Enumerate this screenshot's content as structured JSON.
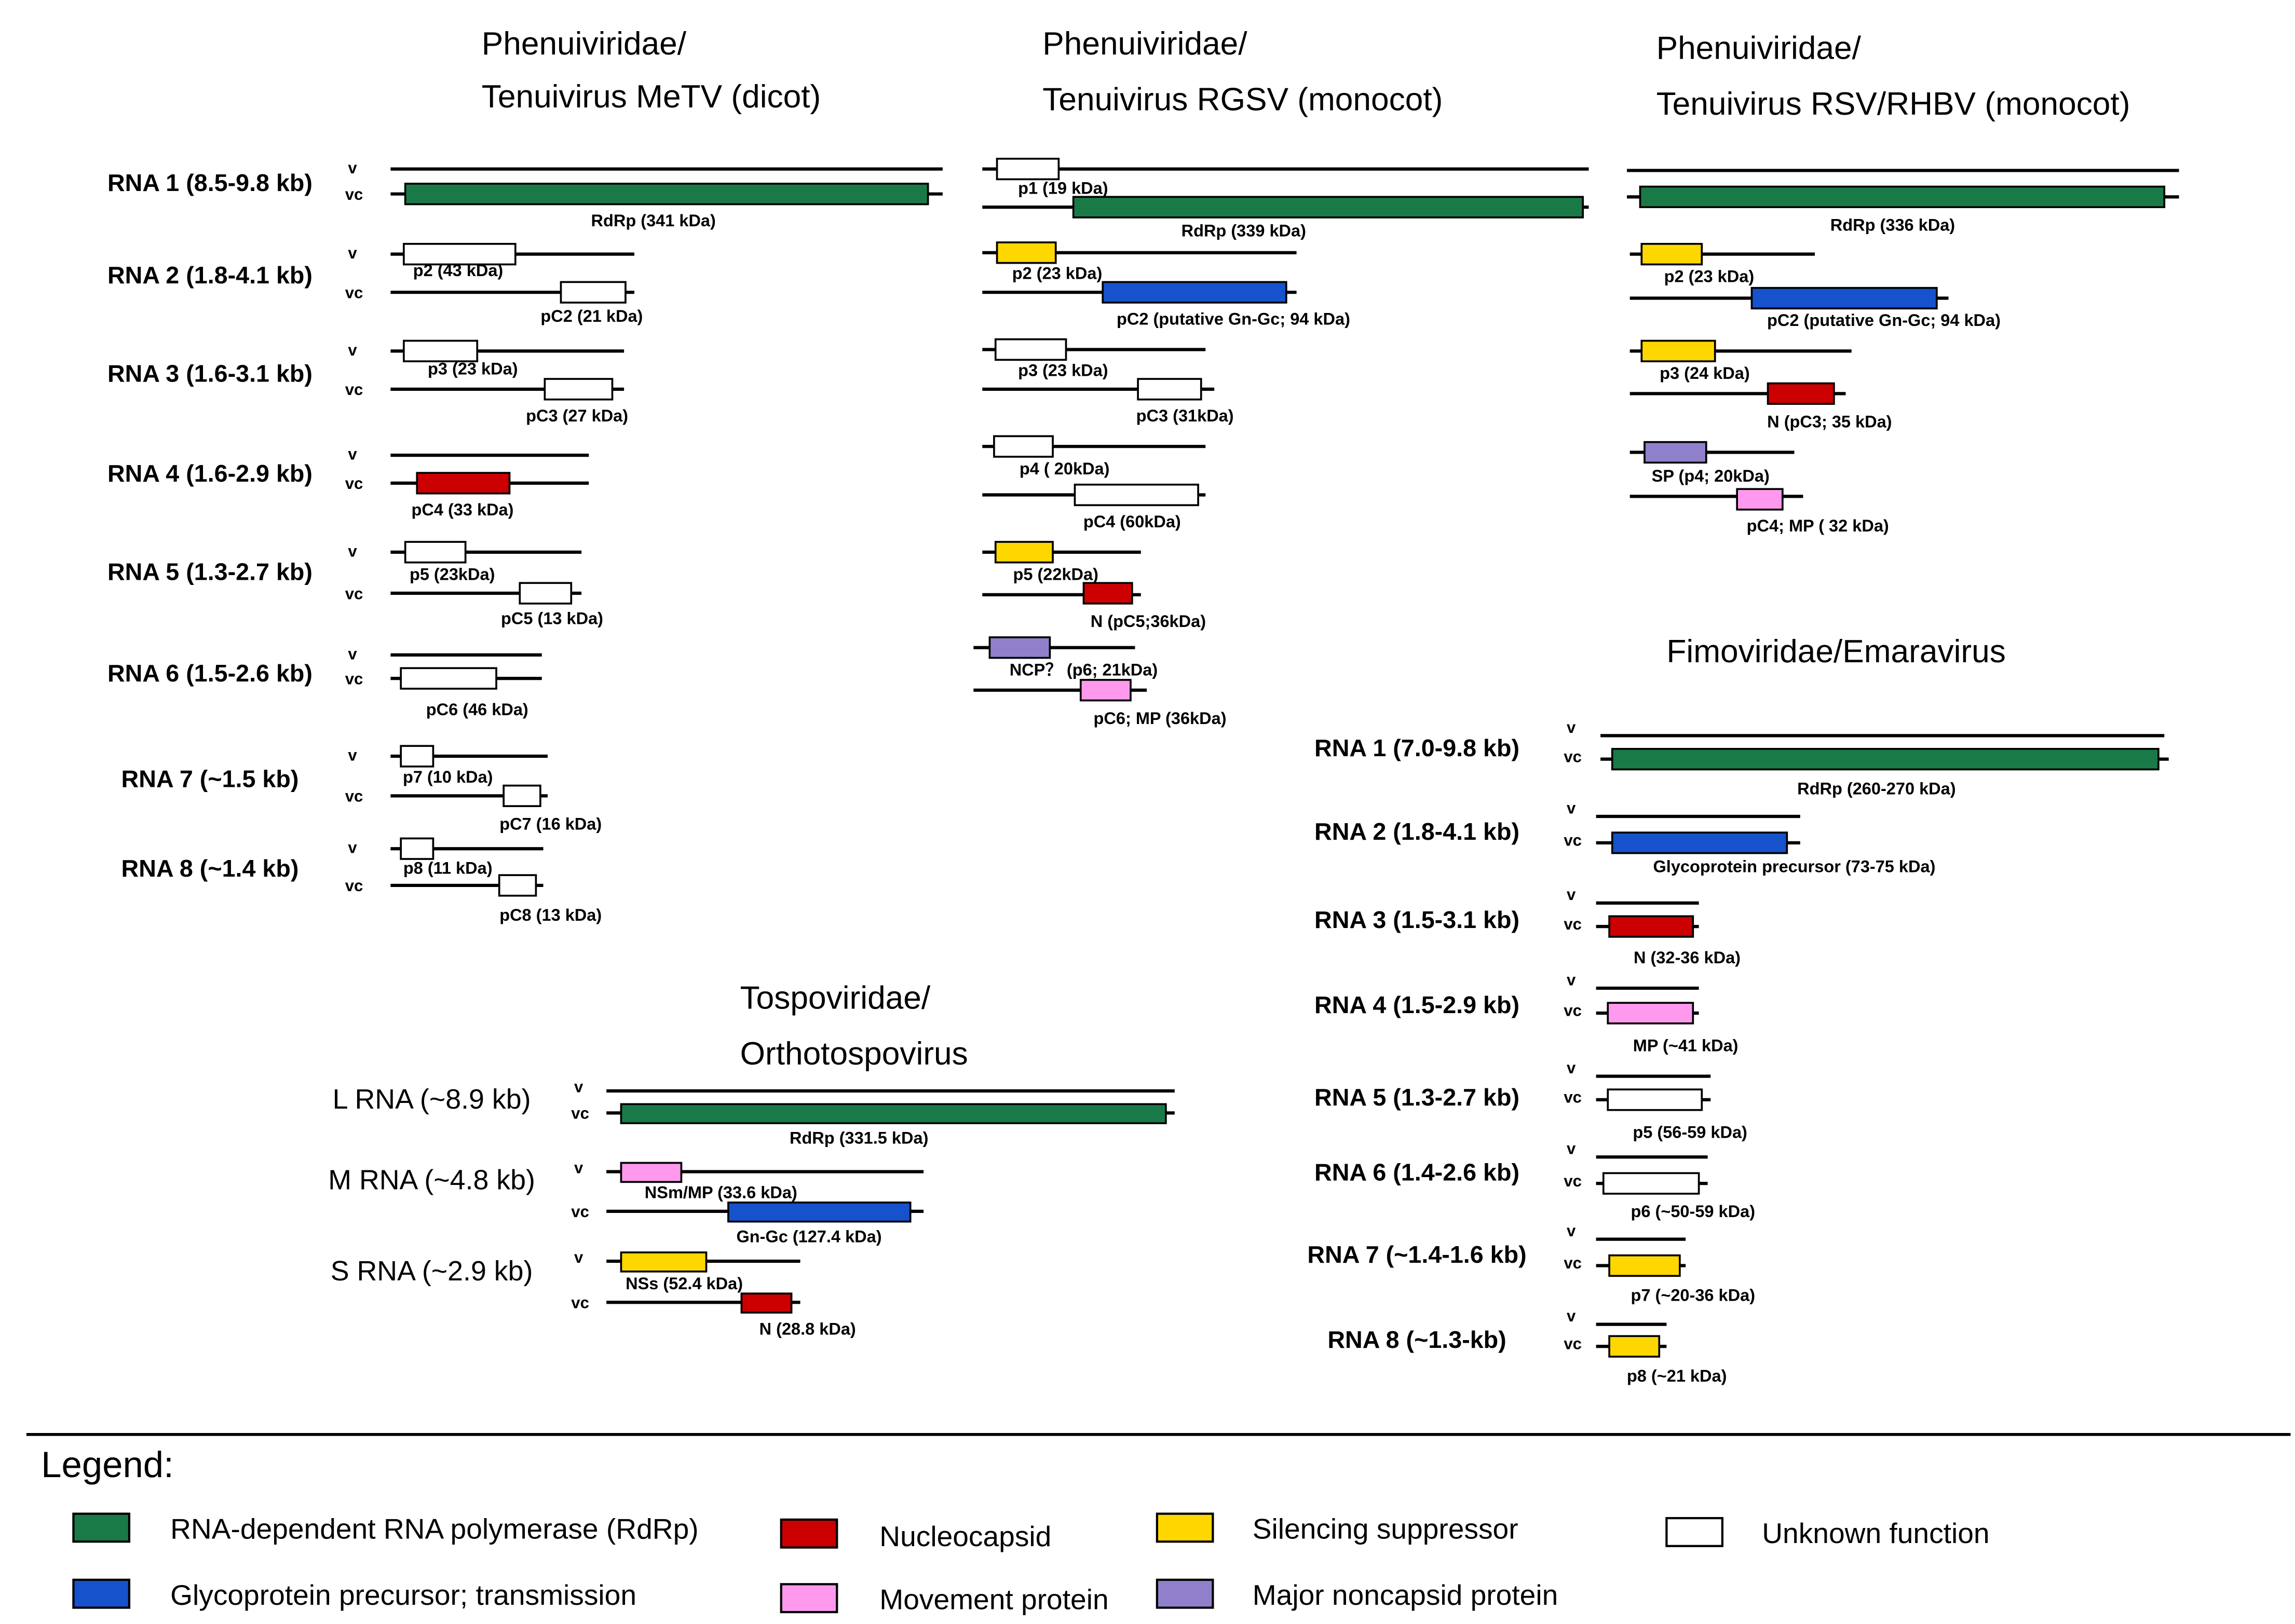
{
  "colors": {
    "rdrp": "#1a7a47",
    "glycoprotein": "#1552cc",
    "nucleocapsid": "#cc0000",
    "movement": "#ff99ee",
    "silencing": "#ffd700",
    "noncapsid": "#9080cc",
    "unknown": "#ffffff"
  },
  "strand_labels": {
    "v": "v",
    "vc": "vc"
  },
  "panels": {
    "metv": {
      "title_line1": "Phenuiviridae/",
      "title_line2": "Tenuivirus MeTV (dicot)",
      "rnas": [
        {
          "label": "RNA 1 (8.5-9.8 kb)",
          "orfs": [
            {
              "name": "RdRp (341 kDa)",
              "type": "rdrp"
            }
          ]
        },
        {
          "label": "RNA 2 (1.8-4.1 kb)",
          "orfs": [
            {
              "name": "p2 (43 kDa)",
              "type": "unknown"
            },
            {
              "name": "pC2 (21 kDa)",
              "type": "unknown"
            }
          ]
        },
        {
          "label": "RNA 3 (1.6-3.1 kb)",
          "orfs": [
            {
              "name": "p3 (23 kDa)",
              "type": "unknown"
            },
            {
              "name": "pC3 (27 kDa)",
              "type": "unknown"
            }
          ]
        },
        {
          "label": "RNA 4 (1.6-2.9 kb)",
          "orfs": [
            {
              "name": "pC4 (33 kDa)",
              "type": "nucleocapsid"
            }
          ]
        },
        {
          "label": "RNA 5 (1.3-2.7 kb)",
          "orfs": [
            {
              "name": "p5 (23kDa)",
              "type": "unknown"
            },
            {
              "name": "pC5 (13 kDa)",
              "type": "unknown"
            }
          ]
        },
        {
          "label": "RNA 6 (1.5-2.6 kb)",
          "orfs": [
            {
              "name": "pC6 (46 kDa)",
              "type": "unknown"
            }
          ]
        },
        {
          "label": "RNA 7 (~1.5 kb)",
          "orfs": [
            {
              "name": "p7 (10 kDa)",
              "type": "unknown"
            },
            {
              "name": "pC7 (16 kDa)",
              "type": "unknown"
            }
          ]
        },
        {
          "label": "RNA 8 (~1.4 kb)",
          "orfs": [
            {
              "name": "p8 (11 kDa)",
              "type": "unknown"
            },
            {
              "name": "pC8 (13 kDa)",
              "type": "unknown"
            }
          ]
        }
      ]
    },
    "rgsv": {
      "title_line1": "Phenuiviridae/",
      "title_line2": "Tenuivirus RGSV (monocot)",
      "orfs": [
        {
          "name": "p1 (19 kDa)",
          "type": "unknown"
        },
        {
          "name": "RdRp (339 kDa)",
          "type": "rdrp"
        },
        {
          "name": "p2 (23 kDa)",
          "type": "silencing"
        },
        {
          "name": "pC2 (putative Gn-Gc; 94 kDa)",
          "type": "glycoprotein"
        },
        {
          "name": "p3 (23 kDa)",
          "type": "unknown"
        },
        {
          "name": "pC3 (31kDa)",
          "type": "unknown"
        },
        {
          "name": "p4 ( 20kDa)",
          "type": "unknown"
        },
        {
          "name": "pC4 (60kDa)",
          "type": "unknown"
        },
        {
          "name": "p5 (22kDa)",
          "type": "silencing"
        },
        {
          "name": "N (pC5;36kDa)",
          "type": "nucleocapsid"
        },
        {
          "name": "NCP？ (p6; 21kDa)",
          "type": "noncapsid"
        },
        {
          "name": "pC6; MP (36kDa)",
          "type": "movement"
        }
      ]
    },
    "rsv": {
      "title_line1": "Phenuiviridae/",
      "title_line2": "Tenuivirus RSV/RHBV (monocot)",
      "orfs": [
        {
          "name": "RdRp (336 kDa)",
          "type": "rdrp"
        },
        {
          "name": "p2 (23 kDa)",
          "type": "silencing"
        },
        {
          "name": "pC2 (putative Gn-Gc; 94 kDa)",
          "type": "glycoprotein"
        },
        {
          "name": "p3 (24 kDa)",
          "type": "silencing"
        },
        {
          "name": "N (pC3; 35 kDa)",
          "type": "nucleocapsid"
        },
        {
          "name": "SP (p4; 20kDa)",
          "type": "noncapsid"
        },
        {
          "name": "pC4; MP ( 32 kDa)",
          "type": "movement"
        }
      ]
    },
    "tospo": {
      "title_line1": "Tospoviridae/",
      "title_line2": "Orthotospovirus",
      "rnas": [
        {
          "label": "L RNA (~8.9 kb)",
          "orfs": [
            {
              "name": "RdRp (331.5 kDa)",
              "type": "rdrp"
            }
          ]
        },
        {
          "label": "M RNA (~4.8 kb)",
          "orfs": [
            {
              "name": "NSm/MP (33.6 kDa)",
              "type": "movement"
            },
            {
              "name": "Gn-Gc (127.4 kDa)",
              "type": "glycoprotein"
            }
          ]
        },
        {
          "label": "S RNA (~2.9 kb)",
          "orfs": [
            {
              "name": "NSs (52.4 kDa)",
              "type": "silencing"
            },
            {
              "name": "N (28.8 kDa)",
              "type": "nucleocapsid"
            }
          ]
        }
      ]
    },
    "emara": {
      "title": "Fimoviridae/Emaravirus",
      "rnas": [
        {
          "label": "RNA 1 (7.0-9.8 kb)",
          "orfs": [
            {
              "name": "RdRp (260-270 kDa)",
              "type": "rdrp"
            }
          ]
        },
        {
          "label": "RNA 2 (1.8-4.1 kb)",
          "orfs": [
            {
              "name": "Glycoprotein precursor (73-75 kDa)",
              "type": "glycoprotein"
            }
          ]
        },
        {
          "label": "RNA 3 (1.5-3.1 kb)",
          "orfs": [
            {
              "name": "N (32-36 kDa)",
              "type": "nucleocapsid"
            }
          ]
        },
        {
          "label": "RNA 4 (1.5-2.9 kb)",
          "orfs": [
            {
              "name": "MP (~41 kDa)",
              "type": "movement"
            }
          ]
        },
        {
          "label": "RNA 5 (1.3-2.7 kb)",
          "orfs": [
            {
              "name": "p5 (56-59 kDa)",
              "type": "unknown"
            }
          ]
        },
        {
          "label": "RNA 6 (1.4-2.6 kb)",
          "orfs": [
            {
              "name": "p6 (~50-59 kDa)",
              "type": "unknown"
            }
          ]
        },
        {
          "label": "RNA 7 (~1.4-1.6 kb)",
          "orfs": [
            {
              "name": "p7 (~20-36 kDa)",
              "type": "silencing"
            }
          ]
        },
        {
          "label": "RNA 8 (~1.3-kb)",
          "orfs": [
            {
              "name": "p8 (~21 kDa)",
              "type": "silencing"
            }
          ]
        }
      ]
    }
  },
  "legend": {
    "title": "Legend:",
    "items": [
      {
        "type": "rdrp",
        "label": "RNA-dependent RNA polymerase (RdRp)"
      },
      {
        "type": "glycoprotein",
        "label": "Glycoprotein precursor; transmission"
      },
      {
        "type": "nucleocapsid",
        "label": "Nucleocapsid"
      },
      {
        "type": "movement",
        "label": "Movement protein"
      },
      {
        "type": "silencing",
        "label": "Silencing suppressor"
      },
      {
        "type": "noncapsid",
        "label": "Major noncapsid protein"
      },
      {
        "type": "unknown",
        "label": "Unknown function"
      }
    ]
  }
}
